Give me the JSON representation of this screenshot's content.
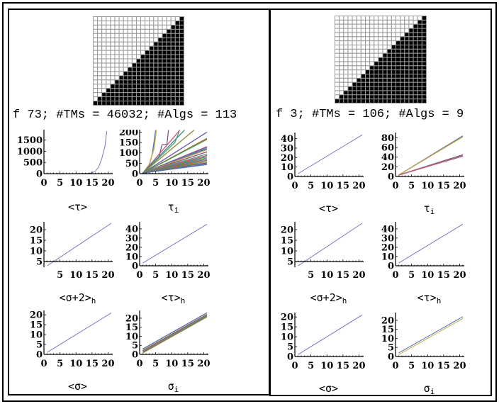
{
  "colors": {
    "line": "#7b74c0",
    "palette": [
      "#4f6fa8",
      "#c9a848",
      "#8b4a8c",
      "#5aa06a",
      "#c05a7a",
      "#3d8c8c",
      "#8a8a3c",
      "#6a5bb0",
      "#b06a3a",
      "#4a9a4a",
      "#a03c6a",
      "#5a8ab8"
    ]
  },
  "panels": [
    {
      "title": "f 73; #TMs = 46032; #Algs = 113",
      "grid": {
        "size": 21
      },
      "chart_data": [
        {
          "type": "line",
          "caption": "<τ>",
          "caption_sub": "",
          "xlim": [
            0,
            21
          ],
          "ylim": [
            0,
            1900
          ],
          "xticks": [
            0,
            5,
            10,
            15,
            20
          ],
          "yticks": [
            0,
            500,
            1000,
            1500
          ],
          "series": [
            {
              "points": [
                [
                  1,
                  0
                ],
                [
                  12,
                  3
                ],
                [
                  14,
                  15
                ],
                [
                  15,
                  40
                ],
                [
                  16,
                  110
                ],
                [
                  17,
                  280
                ],
                [
                  18,
                  650
                ],
                [
                  19,
                  1200
                ],
                [
                  19.6,
                  1900
                ]
              ]
            }
          ]
        },
        {
          "type": "line",
          "caption": "τ",
          "caption_sub": "i",
          "xlim": [
            0,
            21
          ],
          "ylim": [
            0,
            205
          ],
          "xticks": [
            0,
            5,
            10,
            15,
            20
          ],
          "yticks": [
            0,
            50,
            100,
            150,
            200
          ],
          "series": [
            {
              "points": [
                [
                  1,
                  3
                ],
                [
                  3,
                  40
                ],
                [
                  4,
                  100
                ],
                [
                  5,
                  210
                ]
              ]
            },
            {
              "points": [
                [
                  1,
                  3
                ],
                [
                  3,
                  45
                ],
                [
                  4.5,
                  120
                ],
                [
                  5.2,
                  210
                ]
              ]
            },
            {
              "points": [
                [
                  1,
                  3
                ],
                [
                  6,
                  80
                ],
                [
                  7,
                  140
                ],
                [
                  8.5,
                  140
                ],
                [
                  9,
                  210
                ]
              ]
            },
            {
              "points": [
                [
                  1,
                  3
                ],
                [
                  11,
                  150
                ],
                [
                  12.5,
                  210
                ]
              ]
            },
            {
              "points": [
                [
                  1,
                  3
                ],
                [
                  12,
                  200
                ],
                [
                  12.5,
                  210
                ]
              ]
            },
            {
              "points": [
                [
                  1,
                  3
                ],
                [
                  14,
                  210
                ]
              ]
            },
            {
              "points": [
                [
                  1,
                  3
                ],
                [
                  17,
                  210
                ]
              ]
            },
            {
              "points": [
                [
                  1,
                  3
                ],
                [
                  21,
                  200
                ]
              ]
            },
            {
              "points": [
                [
                  1,
                  3
                ],
                [
                  21,
                  170
                ]
              ]
            },
            {
              "points": [
                [
                  1,
                  3
                ],
                [
                  21,
                  165
                ]
              ]
            },
            {
              "points": [
                [
                  1,
                  3
                ],
                [
                  21,
                  130
                ]
              ]
            },
            {
              "points": [
                [
                  1,
                  3
                ],
                [
                  21,
                  125
                ]
              ]
            },
            {
              "points": [
                [
                  1,
                  3
                ],
                [
                  21,
                  120
                ]
              ]
            },
            {
              "points": [
                [
                  1,
                  3
                ],
                [
                  21,
                  115
                ]
              ]
            },
            {
              "points": [
                [
                  1,
                  3
                ],
                [
                  21,
                  105
                ]
              ]
            },
            {
              "points": [
                [
                  1,
                  3
                ],
                [
                  21,
                  95
                ]
              ]
            },
            {
              "points": [
                [
                  1,
                  3
                ],
                [
                  21,
                  88
                ]
              ]
            },
            {
              "points": [
                [
                  1,
                  3
                ],
                [
                  21,
                  82
                ]
              ]
            },
            {
              "points": [
                [
                  1,
                  3
                ],
                [
                  21,
                  76
                ]
              ]
            },
            {
              "points": [
                [
                  1,
                  3
                ],
                [
                  21,
                  70
                ]
              ]
            },
            {
              "points": [
                [
                  1,
                  3
                ],
                [
                  21,
                  64
                ]
              ]
            },
            {
              "points": [
                [
                  1,
                  3
                ],
                [
                  21,
                  58
                ]
              ]
            },
            {
              "points": [
                [
                  1,
                  3
                ],
                [
                  21,
                  52
                ]
              ]
            },
            {
              "points": [
                [
                  1,
                  3
                ],
                [
                  21,
                  48
                ]
              ]
            },
            {
              "points": [
                [
                  1,
                  3
                ],
                [
                  21,
                  44
                ]
              ]
            }
          ]
        },
        {
          "type": "line",
          "caption": "<σ+2>",
          "caption_sub": "h",
          "xlim": [
            0,
            21
          ],
          "ylim": [
            3,
            23
          ],
          "xaxis_at": 5,
          "xticks": [
            5,
            10,
            15,
            20
          ],
          "yticks": [
            5,
            10,
            15,
            20
          ],
          "series": [
            {
              "points": [
                [
                  1,
                  3
                ],
                [
                  21,
                  23
                ]
              ]
            }
          ]
        },
        {
          "type": "line",
          "caption": "<τ>",
          "caption_sub": "h",
          "xlim": [
            0,
            21
          ],
          "ylim": [
            0,
            46
          ],
          "xticks": [
            0,
            5,
            10,
            15,
            20
          ],
          "yticks": [
            0,
            10,
            20,
            30,
            40
          ],
          "series": [
            {
              "points": [
                [
                  1,
                  3
                ],
                [
                  21,
                  45
                ]
              ]
            }
          ]
        },
        {
          "type": "line",
          "caption": "<σ>",
          "caption_sub": "",
          "xlim": [
            0,
            21
          ],
          "ylim": [
            0,
            21.5
          ],
          "xticks": [
            0,
            5,
            10,
            15,
            20
          ],
          "yticks": [
            0,
            5,
            10,
            15,
            20
          ],
          "series": [
            {
              "points": [
                [
                  1,
                  1
                ],
                [
                  21,
                  21
                ]
              ]
            }
          ]
        },
        {
          "type": "line",
          "caption": "σ",
          "caption_sub": "i",
          "xlim": [
            0,
            21
          ],
          "ylim": [
            0,
            23.5
          ],
          "xticks": [
            0,
            5,
            10,
            15,
            20
          ],
          "yticks": [
            0,
            5,
            10,
            15,
            20
          ],
          "series": [
            {
              "points": [
                [
                  1,
                  3
                ],
                [
                  21,
                  23
                ]
              ]
            },
            {
              "points": [
                [
                  1,
                  2.3
                ],
                [
                  21,
                  22.2
                ]
              ]
            },
            {
              "points": [
                [
                  1,
                  2
                ],
                [
                  21,
                  22
                ]
              ]
            },
            {
              "points": [
                [
                  1,
                  1.6
                ],
                [
                  21,
                  21.6
                ]
              ]
            },
            {
              "points": [
                [
                  1,
                  1.3
                ],
                [
                  21,
                  21.2
                ]
              ]
            },
            {
              "points": [
                [
                  1,
                  1
                ],
                [
                  21,
                  21
                ]
              ]
            },
            {
              "points": [
                [
                  1,
                  0.8
                ],
                [
                  21,
                  20.7
                ]
              ]
            }
          ]
        }
      ]
    },
    {
      "title": "f 3; #TMs = 106; #Algs = 9",
      "grid": {
        "size": 21
      },
      "chart_data": [
        {
          "type": "line",
          "caption": "<τ>",
          "caption_sub": "",
          "xlim": [
            0,
            21
          ],
          "ylim": [
            0,
            45
          ],
          "xticks": [
            0,
            5,
            10,
            15,
            20
          ],
          "yticks": [
            0,
            10,
            20,
            30,
            40
          ],
          "series": [
            {
              "points": [
                [
                  1,
                  3
                ],
                [
                  21,
                  44
                ]
              ]
            }
          ]
        },
        {
          "type": "line",
          "caption": "τ",
          "caption_sub": "i",
          "xlim": [
            0,
            21
          ],
          "ylim": [
            0,
            88
          ],
          "xticks": [
            0,
            5,
            10,
            15,
            20
          ],
          "yticks": [
            0,
            20,
            40,
            60,
            80
          ],
          "series": [
            {
              "points": [
                [
                  1,
                  3
                ],
                [
                  21,
                  84
                ]
              ]
            },
            {
              "points": [
                [
                  1,
                  3
                ],
                [
                  21,
                  82
                ]
              ]
            },
            {
              "points": [
                [
                  1,
                  3
                ],
                [
                  21,
                  45
                ]
              ]
            },
            {
              "points": [
                [
                  1,
                  3
                ],
                [
                  21,
                  43
                ]
              ]
            },
            {
              "points": [
                [
                  1,
                  3
                ],
                [
                  21,
                  42
                ]
              ]
            }
          ]
        },
        {
          "type": "line",
          "caption": "<σ+2>",
          "caption_sub": "h",
          "xlim": [
            0,
            21
          ],
          "ylim": [
            3,
            23
          ],
          "xaxis_at": 5,
          "xticks": [
            5,
            10,
            15,
            20
          ],
          "yticks": [
            5,
            10,
            15,
            20
          ],
          "series": [
            {
              "points": [
                [
                  1,
                  3
                ],
                [
                  21,
                  23
                ]
              ]
            }
          ]
        },
        {
          "type": "line",
          "caption": "<τ>",
          "caption_sub": "h",
          "xlim": [
            0,
            21
          ],
          "ylim": [
            0,
            46
          ],
          "xticks": [
            0,
            5,
            10,
            15,
            20
          ],
          "yticks": [
            0,
            10,
            20,
            30,
            40
          ],
          "series": [
            {
              "points": [
                [
                  1,
                  3
                ],
                [
                  21,
                  45
                ]
              ]
            }
          ]
        },
        {
          "type": "line",
          "caption": "<σ>",
          "caption_sub": "",
          "xlim": [
            0,
            21
          ],
          "ylim": [
            0,
            21.5
          ],
          "xticks": [
            0,
            5,
            10,
            15,
            20
          ],
          "yticks": [
            0,
            5,
            10,
            15,
            20
          ],
          "series": [
            {
              "points": [
                [
                  1,
                  1
                ],
                [
                  21,
                  21
                ]
              ]
            }
          ]
        },
        {
          "type": "line",
          "caption": "σ",
          "caption_sub": "i",
          "xlim": [
            0,
            21
          ],
          "ylim": [
            0,
            23.5
          ],
          "xticks": [
            0,
            5,
            10,
            15,
            20
          ],
          "yticks": [
            0,
            5,
            10,
            15,
            20
          ],
          "series": [
            {
              "points": [
                [
                  1,
                  2
                ],
                [
                  21,
                  22
                ]
              ]
            },
            {
              "points": [
                [
                  1,
                  1
                ],
                [
                  21,
                  21
                ]
              ]
            }
          ]
        }
      ]
    }
  ]
}
